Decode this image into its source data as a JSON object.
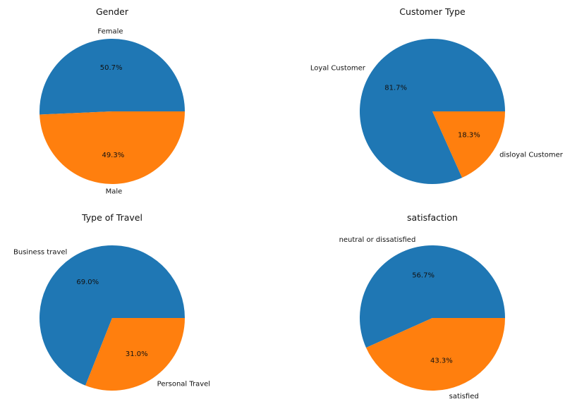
{
  "colors": {
    "blue": "#1f77b4",
    "orange": "#ff7f0e"
  },
  "chart_data": [
    {
      "type": "pie",
      "title": "Gender",
      "labels": [
        "Female",
        "Male"
      ],
      "values": [
        50.7,
        49.3
      ],
      "percent_labels": [
        "50.7%",
        "49.3%"
      ],
      "colors": [
        "#1f77b4",
        "#ff7f0e"
      ]
    },
    {
      "type": "pie",
      "title": "Customer Type",
      "labels": [
        "Loyal Customer",
        "disloyal Customer"
      ],
      "values": [
        81.7,
        18.3
      ],
      "percent_labels": [
        "81.7%",
        "18.3%"
      ],
      "colors": [
        "#1f77b4",
        "#ff7f0e"
      ]
    },
    {
      "type": "pie",
      "title": "Type of Travel",
      "labels": [
        "Business travel",
        "Personal Travel"
      ],
      "values": [
        69.0,
        31.0
      ],
      "percent_labels": [
        "69.0%",
        "31.0%"
      ],
      "colors": [
        "#1f77b4",
        "#ff7f0e"
      ]
    },
    {
      "type": "pie",
      "title": "satisfaction",
      "labels": [
        "neutral or dissatisfied",
        "satisfied"
      ],
      "values": [
        56.7,
        43.3
      ],
      "percent_labels": [
        "56.7%",
        "43.3%"
      ],
      "colors": [
        "#1f77b4",
        "#ff7f0e"
      ]
    }
  ]
}
